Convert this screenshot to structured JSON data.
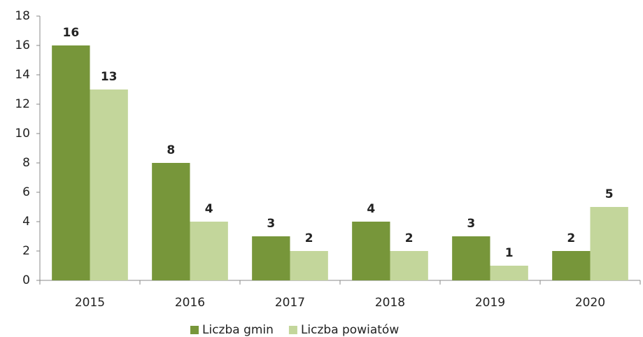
{
  "chart_data": {
    "type": "bar",
    "categories": [
      "2015",
      "2016",
      "2017",
      "2018",
      "2019",
      "2020"
    ],
    "series": [
      {
        "name": "Liczba gmin",
        "color": "#77963a",
        "values": [
          16,
          8,
          3,
          4,
          3,
          2
        ]
      },
      {
        "name": "Liczba powiatów",
        "color": "#c3d69b",
        "values": [
          13,
          4,
          2,
          2,
          1,
          5
        ]
      }
    ],
    "ylim": [
      0,
      18
    ],
    "yticks": [
      0,
      2,
      4,
      6,
      8,
      10,
      12,
      14,
      16,
      18
    ],
    "legend": "bottom"
  }
}
